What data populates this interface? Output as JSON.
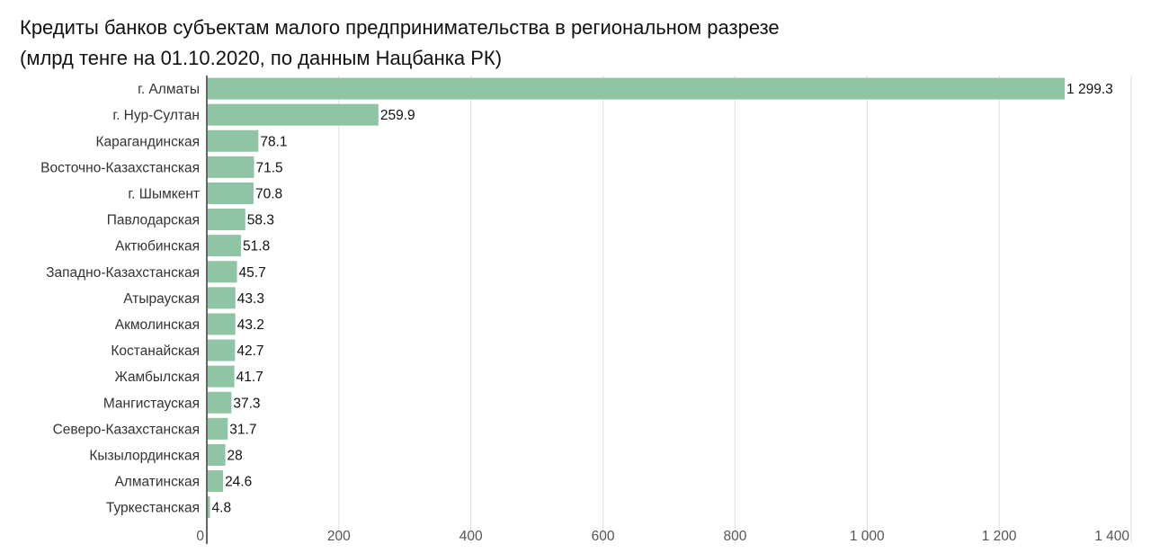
{
  "chart_data": {
    "type": "bar",
    "orientation": "horizontal",
    "title": "Кредиты банков субъектам малого предпринимательства в региональном разрезе",
    "subtitle": "(млрд тенге на 01.10.2020, по данным Нацбанка РК)",
    "categories": [
      "г. Алматы",
      "г. Нур-Султан",
      "Карагандинская",
      "Восточно-Казахстанская",
      "г. Шымкент",
      "Павлодарская",
      "Актюбинская",
      "Западно-Казахстанская",
      "Атырауская",
      "Акмолинская",
      "Костанайская",
      "Жамбылская",
      "Мангистауская",
      "Северо-Казахстанская",
      "Кызылординская",
      "Алматинская",
      "Туркестанская"
    ],
    "values": [
      1299.3,
      259.9,
      78.1,
      71.5,
      70.8,
      58.3,
      51.8,
      45.7,
      43.3,
      43.2,
      42.7,
      41.7,
      37.3,
      31.7,
      28,
      24.6,
      4.8
    ],
    "value_labels": [
      "1 299.3",
      "259.9",
      "78.1",
      "71.5",
      "70.8",
      "58.3",
      "51.8",
      "45.7",
      "43.3",
      "43.2",
      "42.7",
      "41.7",
      "37.3",
      "31.7",
      "28",
      "24.6",
      "4.8"
    ],
    "xlim": [
      0,
      1400
    ],
    "xticks": [
      0,
      200,
      400,
      600,
      800,
      1000,
      1200,
      1400
    ],
    "xtick_labels": [
      "0",
      "200",
      "400",
      "600",
      "800",
      "1 000",
      "1 200",
      "1 400"
    ],
    "grid": "vertical",
    "legend": "none",
    "bar_color": "#8fc4a5"
  }
}
